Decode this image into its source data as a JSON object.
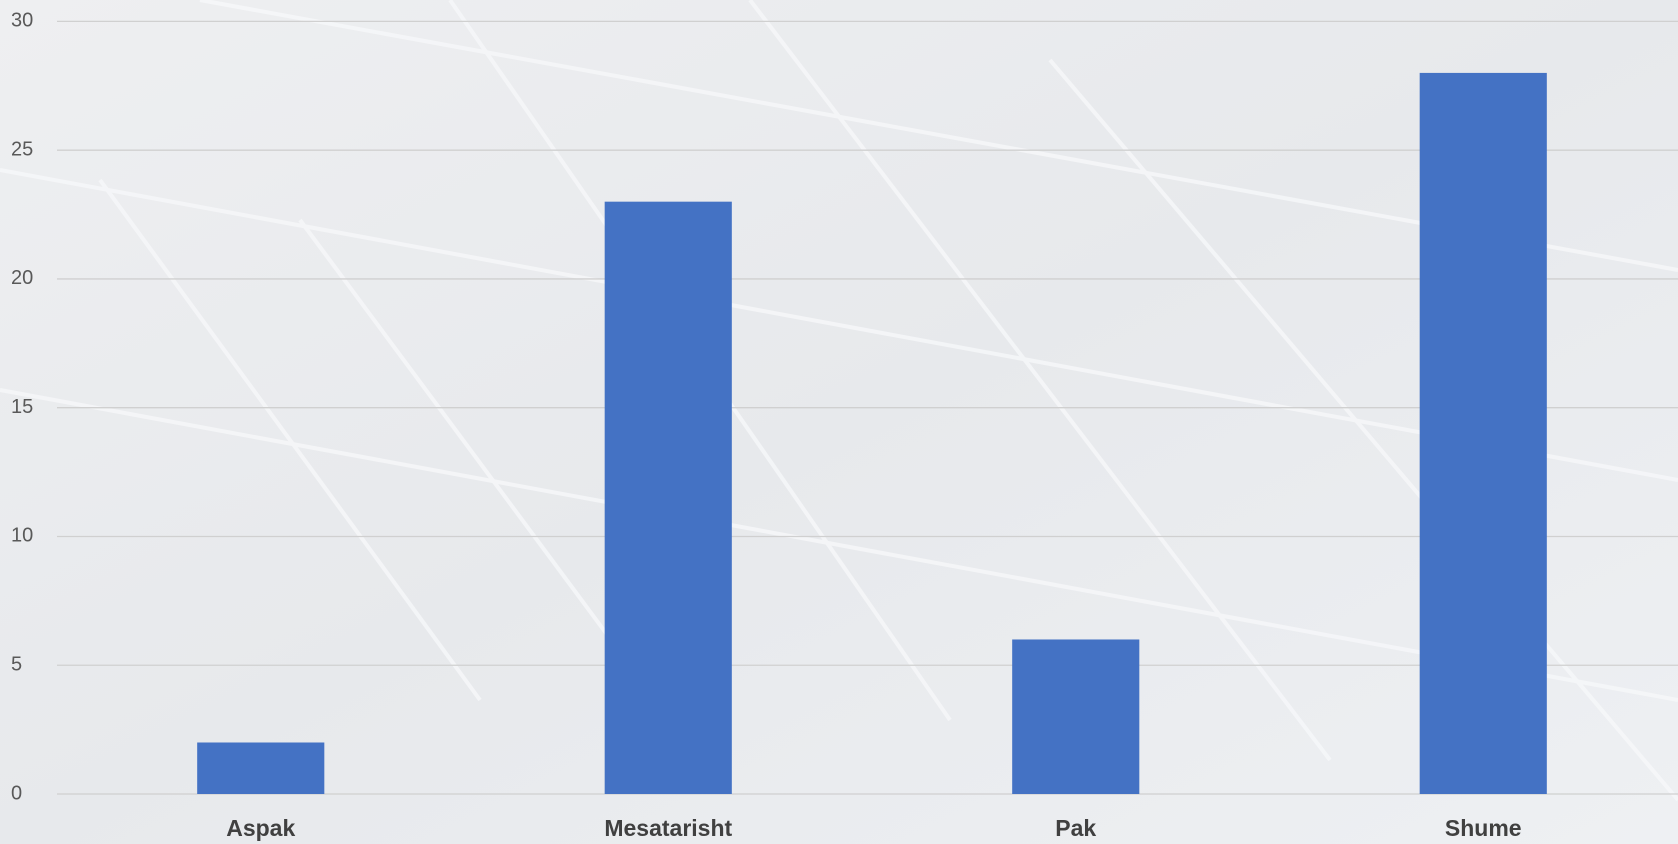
{
  "chart_data": {
    "type": "bar",
    "categories": [
      "Aspak",
      "Mesatarisht",
      "Pak",
      "Shume"
    ],
    "values": [
      2,
      23,
      6,
      28
    ],
    "color": "#4472c4",
    "ylim": [
      0,
      30
    ],
    "yticks": [
      0,
      5,
      10,
      15,
      20,
      25,
      30
    ],
    "grid": true
  }
}
